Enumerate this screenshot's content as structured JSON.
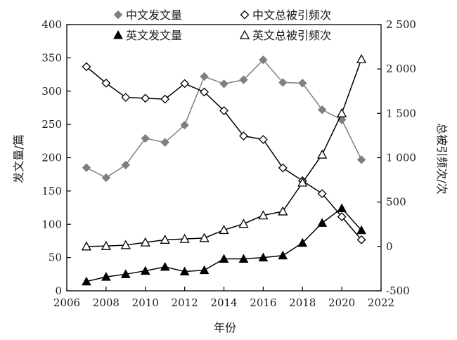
{
  "chart_data": {
    "type": "line",
    "xlabel": "年份",
    "ylabel_left": "发文量/篇",
    "ylabel_right": "总被引频次/次",
    "xlim": [
      2006,
      2022
    ],
    "ylim_left": [
      0,
      400
    ],
    "ylim_right": [
      -500,
      2500
    ],
    "x_ticks": [
      2006,
      2008,
      2010,
      2012,
      2014,
      2016,
      2018,
      2020,
      2022
    ],
    "y_ticks_left": [
      0,
      50,
      100,
      150,
      200,
      250,
      300,
      350,
      400
    ],
    "y_ticks_right": [
      -500,
      0,
      500,
      1000,
      1500,
      2000,
      2500
    ],
    "y_tick_labels_right": [
      "-500",
      "0",
      "500",
      "1 000",
      "1 500",
      "2 000",
      "2 500"
    ],
    "grid": false,
    "legend_position": "top-center",
    "x": [
      2007,
      2008,
      2009,
      2010,
      2011,
      2012,
      2013,
      2014,
      2015,
      2016,
      2017,
      2018,
      2019,
      2020,
      2021
    ],
    "series": [
      {
        "name": "中文发文量",
        "axis": "left",
        "marker": "diamond-filled",
        "line_color": "#7f7f7f",
        "marker_color": "#7f7f7f",
        "values": [
          185,
          170,
          189,
          229,
          223,
          249,
          322,
          311,
          317,
          347,
          313,
          312,
          272,
          257,
          197
        ]
      },
      {
        "name": "中文总被引频次",
        "axis": "right",
        "marker": "diamond-open",
        "line_color": "#000000",
        "marker_color": "#000000",
        "values": [
          2025,
          1840,
          1680,
          1670,
          1660,
          1835,
          1740,
          1530,
          1245,
          1205,
          885,
          740,
          595,
          335,
          75
        ]
      },
      {
        "name": "英文发文量",
        "axis": "left",
        "marker": "triangle-filled",
        "line_color": "#000000",
        "marker_color": "#000000",
        "values": [
          14,
          21,
          25,
          30,
          36,
          29,
          31,
          48,
          48,
          50,
          53,
          72,
          102,
          124,
          91
        ]
      },
      {
        "name": "英文总被引频次",
        "axis": "right",
        "marker": "triangle-open",
        "line_color": "#000000",
        "marker_color": "#000000",
        "values": [
          0,
          5,
          15,
          45,
          75,
          85,
          95,
          185,
          255,
          350,
          395,
          720,
          1035,
          1500,
          2110
        ]
      }
    ]
  }
}
